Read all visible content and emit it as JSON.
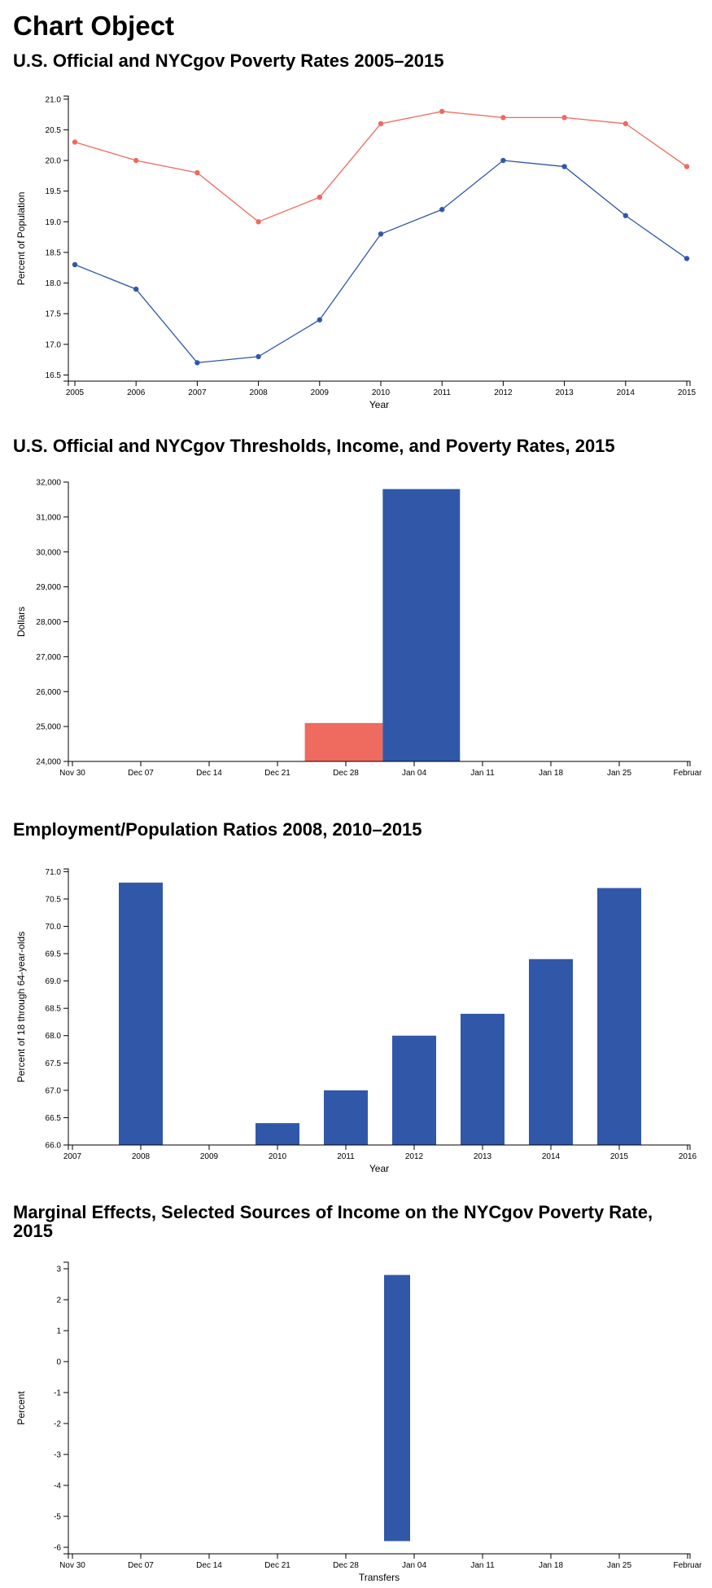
{
  "page": {
    "title": "Chart Object"
  },
  "colors": {
    "blue": "#3157a8",
    "red": "#ef6a5f"
  },
  "chart_data": [
    {
      "type": "line",
      "title": "U.S. Official and NYCgov Poverty Rates 2005–2015",
      "xlabel": "Year",
      "ylabel": "Percent of Population",
      "x": [
        2005,
        2006,
        2007,
        2008,
        2009,
        2010,
        2011,
        2012,
        2013,
        2014,
        2015
      ],
      "x_tick_labels": [
        "2005",
        "2006",
        "2007",
        "2008",
        "2009",
        "2010",
        "2011",
        "2012",
        "2013",
        "2014",
        "2015"
      ],
      "ylim": [
        16.4,
        21.05
      ],
      "y_ticks": [
        16.5,
        17.0,
        17.5,
        18.0,
        18.5,
        19.0,
        19.5,
        20.0,
        20.5,
        21.0
      ],
      "y_tick_labels": [
        "16.5",
        "17.0",
        "17.5",
        "18.0",
        "18.5",
        "19.0",
        "19.5",
        "20.0",
        "20.5",
        "21.0"
      ],
      "series": [
        {
          "color": "#ef6a5f",
          "values": [
            20.3,
            20.0,
            19.8,
            19.0,
            19.4,
            20.6,
            20.8,
            20.7,
            20.7,
            20.6,
            19.9
          ]
        },
        {
          "color": "#3157a8",
          "values": [
            18.3,
            17.9,
            16.7,
            16.8,
            17.4,
            18.8,
            19.2,
            20.0,
            19.9,
            19.1,
            18.4
          ]
        }
      ],
      "grid": false,
      "legend": "none"
    },
    {
      "type": "bar",
      "title": "U.S. Official and NYCgov Thresholds, Income, and Poverty Rates, 2015",
      "xlabel": "",
      "ylabel": "Dollars",
      "x_tick_labels": [
        "Nov 30",
        "Dec 07",
        "Dec 14",
        "Dec 21",
        "Dec 28",
        "Jan 04",
        "Jan 11",
        "Jan 18",
        "Jan 25",
        "Februar"
      ],
      "ylim": [
        24000,
        32000
      ],
      "y_ticks": [
        24000,
        25000,
        26000,
        27000,
        28000,
        29000,
        30000,
        31000,
        32000
      ],
      "y_tick_labels": [
        "24,000",
        "25,000",
        "26,000",
        "27,000",
        "28,000",
        "29,000",
        "30,000",
        "31,000",
        "32,000"
      ],
      "bars": [
        {
          "color": "#ef6a5f",
          "value": 25100
        },
        {
          "color": "#3157a8",
          "value": 31800
        }
      ],
      "grid": false,
      "legend": "none"
    },
    {
      "type": "bar",
      "title": "Employment/Population Ratios 2008, 2010–2015",
      "xlabel": "Year",
      "ylabel": "Percent of 18 through 64-year-olds",
      "x_tick_labels": [
        "2007",
        "2008",
        "2009",
        "2010",
        "2011",
        "2012",
        "2013",
        "2014",
        "2015",
        "2016"
      ],
      "ylim": [
        66.0,
        71.05
      ],
      "y_ticks": [
        66.0,
        66.5,
        67.0,
        67.5,
        68.0,
        68.5,
        69.0,
        69.5,
        70.0,
        70.5,
        71.0
      ],
      "y_tick_labels": [
        "66.0",
        "66.5",
        "67.0",
        "67.5",
        "68.0",
        "68.5",
        "69.0",
        "69.5",
        "70.0",
        "70.5",
        "71.0"
      ],
      "categories": [
        2008,
        2010,
        2011,
        2012,
        2013,
        2014,
        2015
      ],
      "values": [
        70.8,
        66.4,
        67.0,
        68.0,
        68.4,
        69.4,
        70.7
      ],
      "color": "#3157a8",
      "grid": false,
      "legend": "none"
    },
    {
      "type": "bar",
      "title": "Marginal Effects, Selected Sources of Income on the NYCgov Poverty Rate, 2015",
      "xlabel": "Transfers",
      "ylabel": "Percent",
      "x_tick_labels": [
        "Nov 30",
        "Dec 07",
        "Dec 14",
        "Dec 21",
        "Dec 28",
        "Jan 04",
        "Jan 11",
        "Jan 18",
        "Jan 25",
        "Februar"
      ],
      "ylim": [
        -6.2,
        3.3
      ],
      "y_ticks": [
        -6,
        -5,
        -4,
        -3,
        -2,
        -1,
        0,
        1,
        2,
        3
      ],
      "y_tick_labels": [
        "-6",
        "-5",
        "-4",
        "-3",
        "-2",
        "-1",
        "0",
        "1",
        "2",
        "3"
      ],
      "bar": {
        "color": "#3157a8",
        "range": [
          -5.8,
          2.8
        ]
      },
      "grid": false,
      "legend": "none"
    }
  ]
}
